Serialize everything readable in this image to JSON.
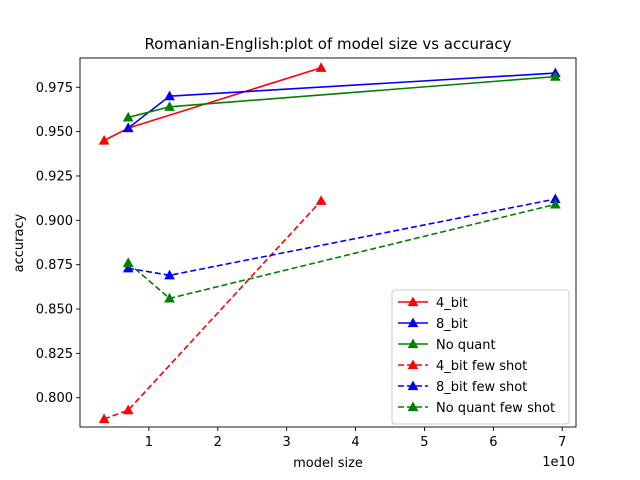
{
  "chart_data": {
    "type": "line",
    "title": "Romanian-English:plot of model size vs accuracy",
    "xlabel": "model size",
    "ylabel": "accuracy",
    "x_offset_label": "1e10",
    "xlim": [
      0.0,
      7.2
    ],
    "ylim": [
      0.7835,
      0.9915
    ],
    "xticks": [
      1,
      2,
      3,
      4,
      5,
      6,
      7
    ],
    "xtick_labels": [
      "1",
      "2",
      "3",
      "4",
      "5",
      "6",
      "7"
    ],
    "yticks": [
      0.8,
      0.825,
      0.85,
      0.875,
      0.9,
      0.925,
      0.95,
      0.975
    ],
    "ytick_labels": [
      "0.800",
      "0.825",
      "0.850",
      "0.875",
      "0.900",
      "0.925",
      "0.950",
      "0.975"
    ],
    "grid": false,
    "legend_position": "lower-right",
    "series": [
      {
        "name": "4_bit",
        "color": "#ff0000",
        "dashed": false,
        "x": [
          0.35,
          0.7,
          3.5
        ],
        "y": [
          0.945,
          0.952,
          0.986
        ]
      },
      {
        "name": "8_bit",
        "color": "#0000ff",
        "dashed": false,
        "x": [
          0.7,
          1.3,
          6.9
        ],
        "y": [
          0.952,
          0.97,
          0.983
        ]
      },
      {
        "name": "No quant",
        "color": "#008000",
        "dashed": false,
        "x": [
          0.7,
          1.3,
          6.9
        ],
        "y": [
          0.958,
          0.964,
          0.981
        ]
      },
      {
        "name": "4_bit few shot",
        "color": "#ff0000",
        "dashed": true,
        "x": [
          0.35,
          0.7,
          3.5
        ],
        "y": [
          0.788,
          0.793,
          0.911
        ]
      },
      {
        "name": "8_bit few shot",
        "color": "#0000ff",
        "dashed": true,
        "x": [
          0.7,
          1.3,
          6.9
        ],
        "y": [
          0.873,
          0.869,
          0.912
        ]
      },
      {
        "name": "No quant few shot",
        "color": "#008000",
        "dashed": true,
        "x": [
          0.7,
          1.3,
          6.9
        ],
        "y": [
          0.876,
          0.856,
          0.909
        ]
      }
    ]
  }
}
